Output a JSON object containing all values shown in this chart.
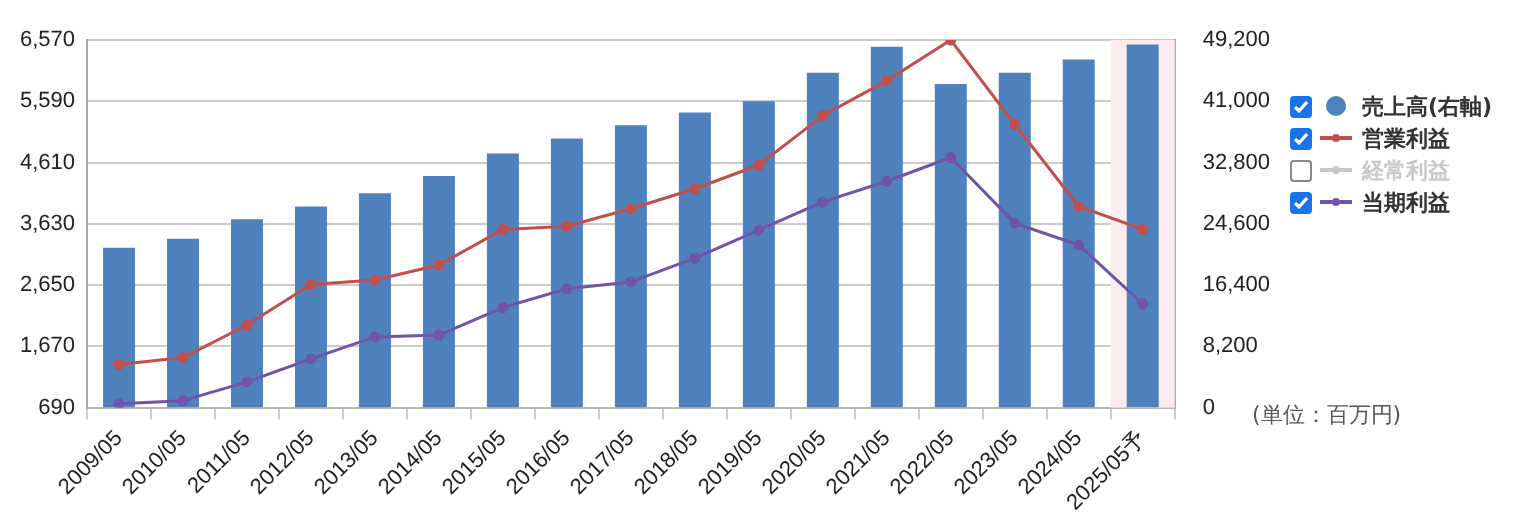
{
  "chart_data": {
    "type": "bar",
    "categories": [
      "2009/05",
      "2010/05",
      "2011/05",
      "2012/05",
      "2013/05",
      "2014/05",
      "2015/05",
      "2016/05",
      "2017/05",
      "2018/05",
      "2019/05",
      "2020/05",
      "2021/05",
      "2022/05",
      "2023/05",
      "2024/05",
      "2025/05予"
    ],
    "series": [
      {
        "name": "売上高(右軸)",
        "axis": "y2",
        "color": "#4f81bd",
        "values": [
          21400,
          22600,
          25200,
          26900,
          28700,
          31000,
          34000,
          36000,
          37800,
          39500,
          41000,
          44800,
          48300,
          43300,
          44800,
          46600,
          48600
        ]
      },
      {
        "name": "営業利益",
        "type": "line",
        "color": "#c0504d",
        "values": [
          1380,
          1490,
          2010,
          2660,
          2730,
          2970,
          3540,
          3590,
          3870,
          4190,
          4570,
          5360,
          5920,
          6570,
          5220,
          3910,
          3540
        ]
      },
      {
        "name": "経常利益",
        "type": "line",
        "color": "#c8c8c8",
        "values": [
          null,
          null,
          null,
          null,
          null,
          null,
          null,
          null,
          null,
          null,
          null,
          null,
          null,
          null,
          null,
          null,
          null
        ]
      },
      {
        "name": "当期利益",
        "type": "line",
        "color": "#7054a8",
        "values": [
          750,
          800,
          1100,
          1470,
          1820,
          1850,
          2290,
          2590,
          2700,
          3080,
          3530,
          3980,
          4310,
          4690,
          3640,
          3290,
          2350
        ]
      }
    ],
    "ylim": [
      690,
      6570
    ],
    "yticks": [
      {
        "value": 690,
        "label": "690"
      },
      {
        "value": 1670,
        "label": "1,670"
      },
      {
        "value": 2650,
        "label": "2,650"
      },
      {
        "value": 3630,
        "label": "3,630"
      },
      {
        "value": 4610,
        "label": "4,610"
      },
      {
        "value": 5590,
        "label": "5,590"
      },
      {
        "value": 6570,
        "label": "6,570"
      }
    ],
    "y2lim": [
      0,
      49200
    ],
    "y2ticks": [
      {
        "value": 0,
        "label": "0"
      },
      {
        "value": 8200,
        "label": "8,200"
      },
      {
        "value": 16400,
        "label": "16,400"
      },
      {
        "value": 24600,
        "label": "24,600"
      },
      {
        "value": 32800,
        "label": "32,800"
      },
      {
        "value": 41000,
        "label": "41,000"
      },
      {
        "value": 49200,
        "label": "49,200"
      }
    ],
    "bands": [
      {
        "axis": "x",
        "from": "2025/05予",
        "to": "2025/05予",
        "color": "#fdeced"
      }
    ],
    "annotations": [
      "(単位：百万円)"
    ],
    "grid": "y",
    "legend": "right",
    "marker": "circle"
  }
}
